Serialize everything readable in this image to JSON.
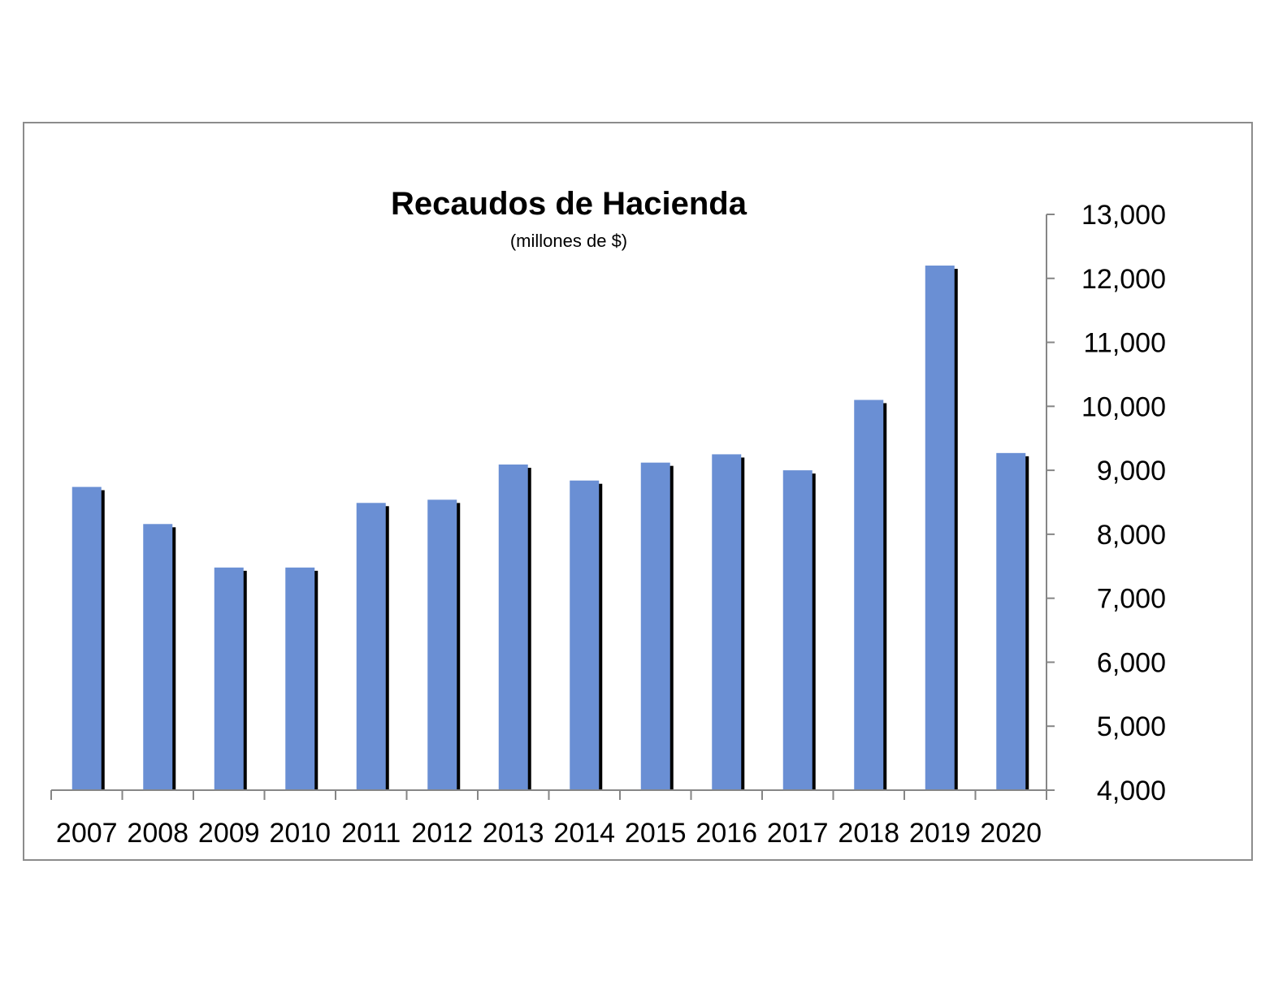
{
  "chart_data": {
    "type": "bar",
    "title": "Recaudos de Hacienda",
    "subtitle": "(millones de $)",
    "xlabel": "",
    "ylabel": "",
    "categories": [
      "2007",
      "2008",
      "2009",
      "2010",
      "2011",
      "2012",
      "2013",
      "2014",
      "2015",
      "2016",
      "2017",
      "2018",
      "2019",
      "2020"
    ],
    "values": [
      8740,
      8160,
      7480,
      7480,
      8490,
      8540,
      9090,
      8840,
      9120,
      9250,
      9000,
      10100,
      12200,
      9270
    ],
    "ylim": [
      4000,
      13000
    ],
    "y_ticks": [
      "4,000",
      "5,000",
      "6,000",
      "7,000",
      "8,000",
      "9,000",
      "10,000",
      "11,000",
      "12,000",
      "13,000"
    ],
    "y_axis_side": "right",
    "grid": false,
    "legend": "none",
    "colors": {
      "bar": "#6a8fd4",
      "shadow": "#000000",
      "axis": "#868686",
      "frame": "#8c8c8c"
    }
  }
}
